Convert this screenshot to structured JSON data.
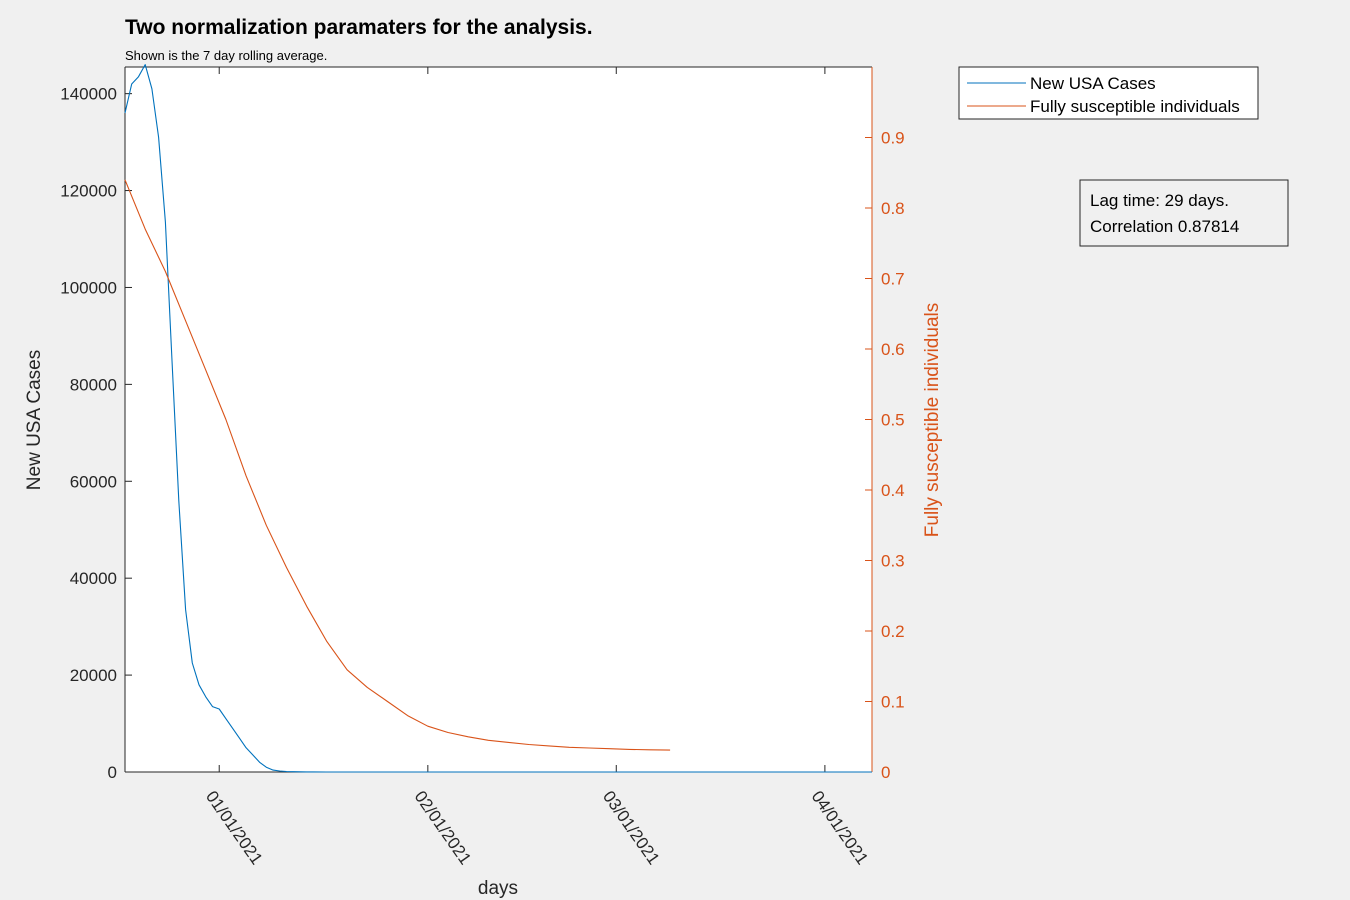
{
  "chart_data": {
    "type": "line",
    "title": "Two normalization paramaters for the analysis.",
    "subtitle": "Shown is the 7 day rolling average.",
    "xlabel": "days",
    "ylabel_left": "New USA Cases",
    "ylabel_right": "Fully susceptible individuals",
    "x_ticks": [
      "01/01/2021",
      "02/01/2021",
      "03/01/2021",
      "04/01/2021"
    ],
    "y_left_ticks": [
      "0",
      "20000",
      "40000",
      "60000",
      "80000",
      "100000",
      "120000",
      "140000"
    ],
    "y_right_ticks": [
      "0",
      "0.1",
      "0.2",
      "0.3",
      "0.4",
      "0.5",
      "0.6",
      "0.7",
      "0.8",
      "0.9"
    ],
    "ylim_left": [
      0,
      145500
    ],
    "ylim_right": [
      0,
      1.0
    ],
    "x_date_range": [
      "12/18/2020",
      "04/08/2021"
    ],
    "legend": [
      "New USA Cases",
      "Fully susceptible individuals"
    ],
    "legend_placement": "outside-top-right",
    "grid": false,
    "colors": {
      "cases": "#0072bd",
      "susceptible": "#d95319"
    },
    "annotation": {
      "lag": "Lag time: 29 days.",
      "correlation": "Correlation 0.87814"
    },
    "series": [
      {
        "name": "New USA Cases",
        "axis": "left",
        "color": "#0072bd",
        "x": [
          "12/18/2020",
          "12/19/2020",
          "12/20/2020",
          "12/21/2020",
          "12/22/2020",
          "12/23/2020",
          "12/24/2020",
          "12/25/2020",
          "12/26/2020",
          "12/27/2020",
          "12/28/2020",
          "12/29/2020",
          "12/30/2020",
          "12/31/2020",
          "01/01/2021",
          "01/02/2021",
          "01/03/2021",
          "01/04/2021",
          "01/05/2021",
          "01/06/2021",
          "01/07/2021",
          "01/08/2021",
          "01/09/2021",
          "01/10/2021",
          "01/11/2021",
          "01/12/2021",
          "01/13/2021",
          "01/14/2021",
          "01/15/2021",
          "01/17/2021",
          "01/19/2021",
          "01/21/2021",
          "02/01/2021",
          "04/08/2021"
        ],
        "y": [
          136000,
          142000,
          143500,
          146000,
          141000,
          131000,
          113500,
          84500,
          56000,
          33500,
          22500,
          18000,
          15500,
          13500,
          13000,
          11000,
          9000,
          7000,
          5000,
          3500,
          2000,
          1000,
          400,
          200,
          100,
          60,
          40,
          30,
          20,
          10,
          5,
          0,
          0,
          0
        ]
      },
      {
        "name": "Fully susceptible individuals",
        "axis": "right",
        "color": "#d95319",
        "x": [
          "12/18/2020",
          "12/21/2020",
          "12/24/2020",
          "12/27/2020",
          "12/30/2020",
          "01/02/2021",
          "01/05/2021",
          "01/08/2021",
          "01/11/2021",
          "01/14/2021",
          "01/17/2021",
          "01/20/2021",
          "01/23/2021",
          "01/26/2021",
          "01/29/2021",
          "02/01/2021",
          "02/04/2021",
          "02/07/2021",
          "02/10/2021",
          "02/13/2021",
          "02/16/2021",
          "02/19/2021",
          "02/22/2021",
          "02/25/2021",
          "02/28/2021",
          "03/03/2021",
          "03/06/2021",
          "03/09/2021"
        ],
        "y": [
          0.84,
          0.77,
          0.71,
          0.64,
          0.57,
          0.5,
          0.42,
          0.35,
          0.29,
          0.235,
          0.185,
          0.145,
          0.12,
          0.1,
          0.08,
          0.065,
          0.056,
          0.05,
          0.045,
          0.042,
          0.039,
          0.037,
          0.035,
          0.034,
          0.033,
          0.032,
          0.0315,
          0.031
        ]
      }
    ]
  }
}
